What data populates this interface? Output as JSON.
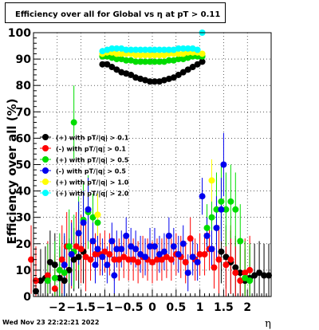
{
  "chart_data": {
    "type": "scatter",
    "title": "Efficiency over all for Global vs   η at pT > 0.11",
    "xlabel": "η",
    "ylabel": "Efficiency over all (%)",
    "xlim": [
      -2.5,
      2.5
    ],
    "ylim": [
      0,
      100
    ],
    "x_ticks": [
      -2,
      -1.5,
      -1,
      -0.5,
      0,
      0.5,
      1,
      1.5,
      2
    ],
    "x_tick_labels": [
      "−2",
      "−1.5",
      "−1",
      "−0.5",
      "0",
      "0.5",
      "1",
      "1.5",
      "2"
    ],
    "y_ticks": [
      0,
      10,
      20,
      30,
      40,
      50,
      60,
      70,
      80,
      90,
      100
    ],
    "y_tick_labels": [
      "0",
      "10",
      "20",
      "30",
      "40",
      "50",
      "60",
      "70",
      "80",
      "90",
      "100"
    ],
    "grid": true,
    "legend_position": "left-middle",
    "footer_date": "Wed Nov 23 22:22:21 2022",
    "series": [
      {
        "name": "(+) with pT/|q| > 0.1",
        "color": "#000000",
        "points": [
          [
            -2.45,
            2
          ],
          [
            -2.35,
            6
          ],
          [
            -2.25,
            7
          ],
          [
            -2.15,
            13
          ],
          [
            -2.05,
            12
          ],
          [
            -1.95,
            7
          ],
          [
            -1.85,
            6
          ],
          [
            -1.75,
            10
          ],
          [
            -1.65,
            14
          ],
          [
            -1.55,
            15
          ],
          [
            -1.45,
            17
          ],
          [
            -1.05,
            88
          ],
          [
            -0.95,
            88
          ],
          [
            -0.85,
            87
          ],
          [
            -0.75,
            86
          ],
          [
            -0.65,
            85
          ],
          [
            -0.55,
            84.5
          ],
          [
            -0.45,
            84
          ],
          [
            -0.35,
            83
          ],
          [
            -0.25,
            82.5
          ],
          [
            -0.15,
            82
          ],
          [
            -0.05,
            81.5
          ],
          [
            0.05,
            81.5
          ],
          [
            0.15,
            81.5
          ],
          [
            0.25,
            82
          ],
          [
            0.35,
            82.5
          ],
          [
            0.45,
            83
          ],
          [
            0.55,
            84
          ],
          [
            0.65,
            85
          ],
          [
            0.75,
            86
          ],
          [
            0.85,
            87
          ],
          [
            0.95,
            88
          ],
          [
            1.05,
            89
          ],
          [
            1.45,
            17
          ],
          [
            1.55,
            15
          ],
          [
            1.65,
            13
          ],
          [
            1.75,
            11
          ],
          [
            1.85,
            9
          ],
          [
            1.95,
            6
          ],
          [
            2.05,
            7
          ],
          [
            2.15,
            8
          ],
          [
            2.25,
            9
          ],
          [
            2.35,
            8
          ],
          [
            2.45,
            8
          ]
        ]
      },
      {
        "name": "(-) with pT/|q| > 0.1",
        "color": "#ff0000",
        "points": [
          [
            -2.55,
            14
          ],
          [
            -2.45,
            6
          ],
          [
            -2.2,
            8
          ],
          [
            -2.05,
            3
          ],
          [
            -1.9,
            14
          ],
          [
            -1.8,
            19
          ],
          [
            -1.7,
            16
          ],
          [
            -1.6,
            19
          ],
          [
            -1.5,
            18
          ],
          [
            -1.4,
            15
          ],
          [
            -1.3,
            14
          ],
          [
            -1.2,
            16
          ],
          [
            -1.1,
            16
          ],
          [
            -1.0,
            17
          ],
          [
            -0.9,
            16
          ],
          [
            -0.8,
            14
          ],
          [
            -0.7,
            14
          ],
          [
            -0.6,
            15
          ],
          [
            -0.5,
            14
          ],
          [
            -0.4,
            14
          ],
          [
            -0.3,
            13
          ],
          [
            -0.2,
            15
          ],
          [
            -0.1,
            14
          ],
          [
            0.0,
            13
          ],
          [
            0.1,
            14
          ],
          [
            0.2,
            14
          ],
          [
            0.3,
            15
          ],
          [
            0.4,
            14
          ],
          [
            0.5,
            16
          ],
          [
            0.6,
            15
          ],
          [
            0.7,
            13
          ],
          [
            0.8,
            22
          ],
          [
            0.9,
            14
          ],
          [
            1.0,
            16
          ],
          [
            1.1,
            16
          ],
          [
            1.2,
            18
          ],
          [
            1.3,
            11
          ],
          [
            1.4,
            14
          ],
          [
            1.55,
            12
          ],
          [
            1.65,
            14
          ],
          [
            1.75,
            9
          ],
          [
            1.85,
            6
          ],
          [
            1.95,
            9
          ],
          [
            2.05,
            10
          ]
        ]
      },
      {
        "name": "(+) with pT/|q| > 0.5",
        "color": "#00dd00",
        "points": [
          [
            -2.2,
            6
          ],
          [
            -2.05,
            7
          ],
          [
            -1.95,
            10
          ],
          [
            -1.85,
            9
          ],
          [
            -1.75,
            19
          ],
          [
            -1.65,
            17
          ],
          [
            -1.55,
            24
          ],
          [
            -1.45,
            29
          ],
          [
            -1.35,
            32
          ],
          [
            -1.25,
            30
          ],
          [
            -1.15,
            28
          ],
          [
            -1.05,
            91
          ],
          [
            -0.95,
            91
          ],
          [
            -0.85,
            90.5
          ],
          [
            -0.75,
            90
          ],
          [
            -0.65,
            90
          ],
          [
            -0.55,
            89.5
          ],
          [
            -0.45,
            89.5
          ],
          [
            -0.35,
            89
          ],
          [
            -0.25,
            89
          ],
          [
            -0.15,
            89
          ],
          [
            -0.05,
            89
          ],
          [
            0.05,
            89
          ],
          [
            0.15,
            89
          ],
          [
            0.25,
            89
          ],
          [
            0.35,
            89.5
          ],
          [
            0.45,
            89.5
          ],
          [
            0.55,
            90
          ],
          [
            0.65,
            90
          ],
          [
            0.75,
            90.5
          ],
          [
            0.85,
            91
          ],
          [
            0.95,
            91
          ],
          [
            1.05,
            91
          ],
          [
            1.15,
            26
          ],
          [
            1.25,
            30
          ],
          [
            1.35,
            33
          ],
          [
            1.45,
            36
          ],
          [
            1.55,
            33
          ],
          [
            1.65,
            36
          ],
          [
            1.75,
            33
          ],
          [
            1.85,
            21
          ],
          [
            1.95,
            7
          ],
          [
            2.05,
            6
          ],
          [
            -1.65,
            66
          ]
        ]
      },
      {
        "name": "(-) with pT/|q| > 0.5",
        "color": "#0000ee",
        "points": [
          [
            -1.85,
            12
          ],
          [
            -1.7,
            16
          ],
          [
            -1.55,
            24
          ],
          [
            -1.45,
            28
          ],
          [
            -1.35,
            33
          ],
          [
            -1.25,
            21
          ],
          [
            -1.15,
            18
          ],
          [
            -1.05,
            15
          ],
          [
            -0.95,
            12
          ],
          [
            -0.85,
            21
          ],
          [
            -0.75,
            18
          ],
          [
            -0.65,
            18
          ],
          [
            -0.55,
            23
          ],
          [
            -0.45,
            19
          ],
          [
            -0.35,
            18
          ],
          [
            -0.25,
            16
          ],
          [
            -0.15,
            15
          ],
          [
            -0.05,
            19
          ],
          [
            0.05,
            19
          ],
          [
            0.15,
            16
          ],
          [
            0.25,
            17
          ],
          [
            0.35,
            23
          ],
          [
            0.45,
            19
          ],
          [
            0.55,
            16
          ],
          [
            0.65,
            20
          ],
          [
            0.75,
            9
          ],
          [
            0.85,
            15
          ],
          [
            0.95,
            13
          ],
          [
            1.05,
            38
          ],
          [
            1.15,
            23
          ],
          [
            1.25,
            18
          ],
          [
            1.35,
            26
          ],
          [
            1.45,
            33
          ],
          [
            1.5,
            50
          ],
          [
            -1.2,
            12
          ],
          [
            -0.8,
            8
          ]
        ]
      },
      {
        "name": "(+) with pT/|q| > 1.0",
        "color": "#ffff00",
        "points": [
          [
            -1.15,
            31
          ],
          [
            -1.05,
            92
          ],
          [
            -0.95,
            92.5
          ],
          [
            -0.85,
            92.5
          ],
          [
            -0.75,
            92
          ],
          [
            -0.65,
            92
          ],
          [
            -0.55,
            92
          ],
          [
            -0.45,
            92
          ],
          [
            -0.35,
            91.5
          ],
          [
            -0.25,
            91.5
          ],
          [
            -0.15,
            91.5
          ],
          [
            -0.05,
            91.5
          ],
          [
            0.05,
            91.5
          ],
          [
            0.15,
            91.5
          ],
          [
            0.25,
            91.5
          ],
          [
            0.35,
            92
          ],
          [
            0.45,
            92
          ],
          [
            0.55,
            92
          ],
          [
            0.65,
            92
          ],
          [
            0.75,
            92.5
          ],
          [
            0.85,
            92.5
          ],
          [
            0.95,
            92.5
          ],
          [
            1.05,
            92
          ],
          [
            1.25,
            44
          ]
        ]
      },
      {
        "name": "(+) with pT/|q| > 2.0",
        "color": "#00ffff",
        "points": [
          [
            -1.05,
            93
          ],
          [
            -0.95,
            93.5
          ],
          [
            -0.85,
            94
          ],
          [
            -0.75,
            94
          ],
          [
            -0.65,
            94
          ],
          [
            -0.55,
            93.5
          ],
          [
            -0.45,
            93.5
          ],
          [
            -0.35,
            93.5
          ],
          [
            -0.25,
            93.5
          ],
          [
            -0.15,
            93.5
          ],
          [
            -0.05,
            93.5
          ],
          [
            0.05,
            93.5
          ],
          [
            0.15,
            93.5
          ],
          [
            0.25,
            93.5
          ],
          [
            0.35,
            93.5
          ],
          [
            0.45,
            93.5
          ],
          [
            0.55,
            94
          ],
          [
            0.65,
            94
          ],
          [
            0.75,
            94
          ],
          [
            0.85,
            94
          ],
          [
            0.95,
            93.5
          ],
          [
            1.05,
            100
          ]
        ]
      }
    ]
  }
}
